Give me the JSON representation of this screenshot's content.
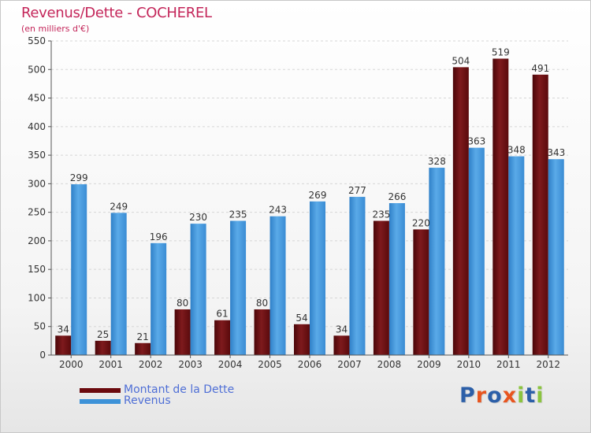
{
  "header": {
    "title": "Revenus/Dette - COCHEREL",
    "subtitle": "(en milliers d'€)"
  },
  "legend": {
    "items": [
      {
        "label": "Montant de la Dette",
        "color": "#6b0a0e"
      },
      {
        "label": "Revenus",
        "color": "#3d92d8"
      }
    ]
  },
  "logo": {
    "text": "Proxiti",
    "letters": [
      "P",
      "r",
      "o",
      "x",
      "i",
      "t",
      "i"
    ],
    "colors": [
      "#2c5fa8",
      "#e8551f",
      "#2c5fa8",
      "#e8551f",
      "#8bc43f",
      "#2c5fa8",
      "#8bc43f"
    ]
  },
  "colors": {
    "dette": "#6b0a0e",
    "revenus": "#3d92d8",
    "title": "#c4265a"
  },
  "chart_data": {
    "type": "bar",
    "title": "Revenus/Dette - COCHEREL",
    "subtitle": "(en milliers d'€)",
    "categories": [
      "2000",
      "2001",
      "2002",
      "2003",
      "2004",
      "2005",
      "2006",
      "2007",
      "2008",
      "2009",
      "2010",
      "2011",
      "2012"
    ],
    "series": [
      {
        "name": "Montant de la Dette",
        "values": [
          34,
          25,
          21,
          80,
          61,
          80,
          54,
          34,
          235,
          220,
          504,
          519,
          491
        ],
        "labels": [
          "34",
          "25",
          "21",
          "80",
          "61",
          "80",
          "54",
          "34",
          "235",
          "220",
          "504",
          "519",
          "491"
        ]
      },
      {
        "name": "Revenus",
        "values": [
          299,
          249,
          196,
          230,
          235,
          243,
          269,
          277,
          266,
          328,
          363,
          348,
          343
        ],
        "labels": [
          "299",
          "249",
          "196",
          "230",
          "235",
          "243",
          "269",
          "277",
          "266",
          "328",
          "363",
          "348",
          "343"
        ]
      }
    ],
    "ylim": [
      0,
      550
    ],
    "yticks": [
      0,
      50,
      100,
      150,
      200,
      250,
      300,
      350,
      400,
      450,
      500,
      550
    ],
    "ytick_labels": [
      "0",
      "50",
      "100",
      "150",
      "200",
      "250",
      "300",
      "350",
      "400",
      "450",
      "500",
      "550"
    ],
    "xlabel": "",
    "ylabel": "",
    "grid": true,
    "legend_position": "bottom-left"
  }
}
